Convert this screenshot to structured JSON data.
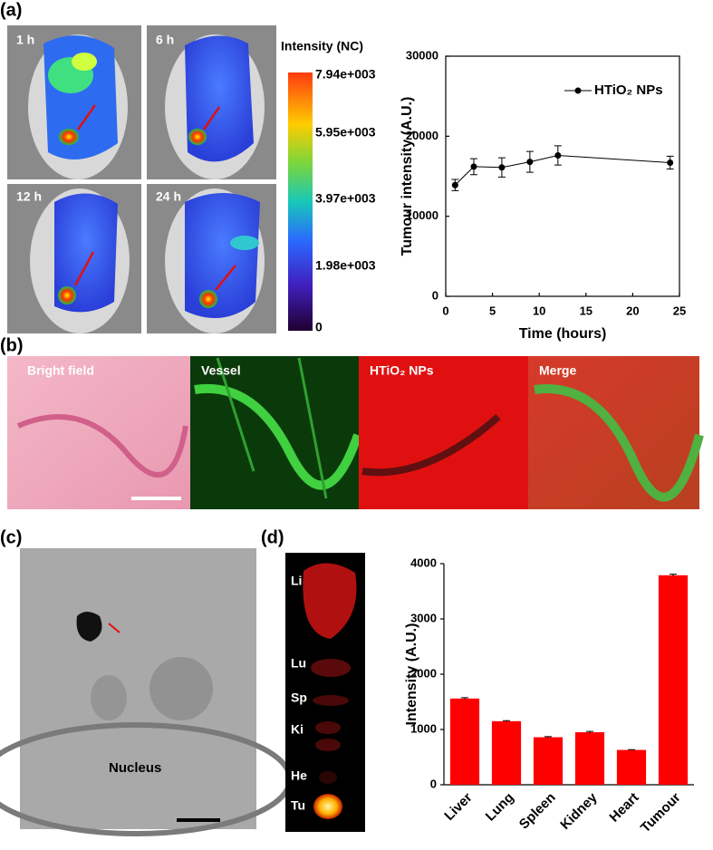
{
  "figure": {
    "panels": [
      "(a)",
      "(b)",
      "(c)",
      "(d)"
    ],
    "imaging": {
      "times": [
        "1 h",
        "6 h",
        "12 h",
        "24 h"
      ],
      "colorbar": {
        "title": "Intensity (NC)",
        "labels": [
          "7.94e+003",
          "5.95e+003",
          "3.97e+003",
          "1.98e+003",
          "0"
        ]
      }
    },
    "vessel_images": [
      "Bright field",
      "Vessel",
      "HTiO₂ NPs",
      "Merge"
    ],
    "tem": {
      "label": "Nucleus"
    },
    "organs": [
      "Li",
      "Lu",
      "Sp",
      "Ki",
      "He",
      "Tu"
    ]
  },
  "chart_data": [
    {
      "type": "line",
      "xlabel": "Time (hours)",
      "ylabel": "Tumour intensity (A.U.)",
      "x": [
        1,
        3,
        6,
        9,
        12,
        24
      ],
      "series": [
        {
          "name": "HTiO₂ NPs",
          "color": "#000000",
          "values": [
            13900,
            16200,
            16100,
            16800,
            17600,
            16700
          ],
          "errors": [
            700,
            1000,
            1200,
            1300,
            1200,
            800
          ]
        }
      ],
      "xlim": [
        0,
        25
      ],
      "xticks": [
        0,
        5,
        10,
        15,
        20,
        25
      ],
      "ylim": [
        0,
        30000
      ],
      "yticks": [
        0,
        10000,
        20000,
        30000
      ],
      "legend": "upper right"
    },
    {
      "type": "bar",
      "ylabel": "Intensity (A.U.)",
      "categories": [
        "Liver",
        "Lung",
        "Spleen",
        "Kidney",
        "Heart",
        "Tumour"
      ],
      "values": [
        1560,
        1150,
        860,
        950,
        630,
        3790
      ],
      "errors": [
        15,
        10,
        10,
        15,
        5,
        20
      ],
      "color": "#ff0000",
      "ylim": [
        0,
        4000
      ],
      "yticks": [
        0,
        1000,
        2000,
        3000,
        4000
      ]
    }
  ]
}
